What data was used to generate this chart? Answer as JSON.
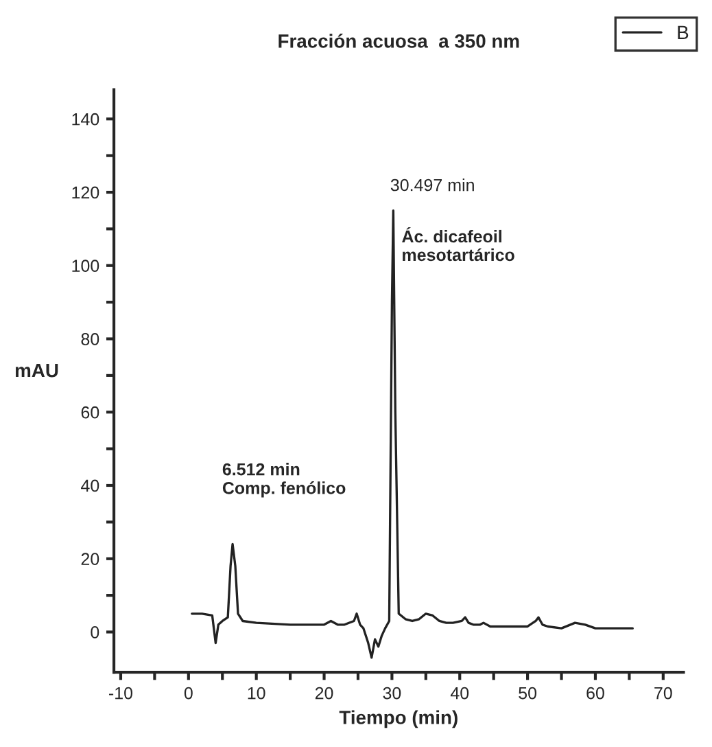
{
  "chart_data": {
    "type": "line",
    "title": "Fracción acuosa  a 350 nm",
    "xlabel": "Tiempo (min)",
    "ylabel": "mAU",
    "series": [
      {
        "name": "B",
        "color": "#222222",
        "x": [
          0.5,
          2,
          3.5,
          4,
          4.4,
          5,
          5.8,
          6.2,
          6.5,
          6.9,
          7.3,
          8,
          10,
          15,
          20,
          21,
          22,
          23,
          24.4,
          24.8,
          25.3,
          25.8,
          26.5,
          27,
          27.5,
          28,
          28.5,
          29,
          29.6,
          30,
          30.2,
          30.5,
          31,
          32,
          33,
          34,
          35,
          36,
          37,
          38,
          39,
          40.3,
          40.8,
          41.3,
          42,
          43,
          43.5,
          44.5,
          45,
          48,
          50,
          51.2,
          51.6,
          52.2,
          53,
          55,
          57,
          58.5,
          60,
          63,
          65.5
        ],
        "values": [
          5,
          5,
          4.5,
          -3,
          2,
          3,
          4,
          18,
          24,
          18,
          5,
          3,
          2.5,
          2,
          2,
          3,
          2,
          2,
          3,
          5,
          2,
          1,
          -3,
          -7,
          -2,
          -4,
          -1,
          1,
          3,
          90,
          115,
          60,
          5,
          3.5,
          3,
          3.5,
          5,
          4.5,
          3,
          2.5,
          2.5,
          3,
          4,
          2.5,
          2,
          2,
          2.5,
          1.5,
          1.5,
          1.5,
          1.5,
          3,
          4,
          2,
          1.5,
          1,
          2.5,
          2,
          1,
          1,
          1
        ]
      }
    ],
    "xlim": [
      -11,
      73
    ],
    "ylim": [
      -11,
      148
    ],
    "xticks": [
      -10,
      {
        "value": -5,
        "label": null
      },
      0,
      {
        "value": 5,
        "label": null
      },
      10,
      {
        "value": 15,
        "label": null
      },
      20,
      {
        "value": 25,
        "label": null
      },
      30,
      {
        "value": 35,
        "label": null
      },
      40,
      {
        "value": 45,
        "label": null
      },
      50,
      {
        "value": 55,
        "label": null
      },
      60,
      {
        "value": 65,
        "label": null
      },
      70
    ],
    "yticks": [
      0,
      {
        "value": 10,
        "label": null
      },
      20,
      {
        "value": 30,
        "label": null
      },
      40,
      {
        "value": 50,
        "label": null
      },
      60,
      {
        "value": 70,
        "label": null
      },
      80,
      {
        "value": 90,
        "label": null
      },
      100,
      {
        "value": 110,
        "label": null
      },
      120,
      {
        "value": 130,
        "label": null
      },
      140
    ],
    "annotations": [
      "6.512 min\nComp. fenólico",
      "30.497 min",
      "Ác. dicafeoil\nmesotartárico"
    ],
    "legend": "top right",
    "grid": false,
    "marker": "none",
    "line_style": "solid"
  }
}
